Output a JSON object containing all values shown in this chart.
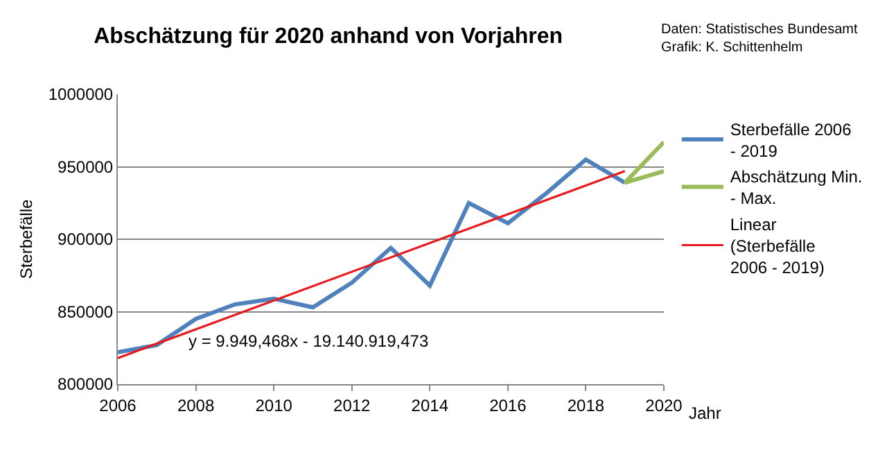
{
  "chart_data": {
    "type": "line",
    "title": "Abschätzung für 2020 anhand von Vorjahren",
    "xlabel": "Jahr",
    "ylabel": "Sterbefälle",
    "annotations": [
      "Daten: Statistisches Bundesamt",
      "Grafik: K. Schittenhelm",
      "y = 9.949,468x - 19.140.919,473"
    ],
    "x": [
      2006,
      2007,
      2008,
      2009,
      2010,
      2011,
      2012,
      2013,
      2014,
      2015,
      2016,
      2017,
      2018,
      2019
    ],
    "series": [
      {
        "name": "Sterbefälle 2006 - 2019",
        "color": "#4f81bd",
        "values": [
          822000,
          827000,
          845000,
          855000,
          859000,
          853000,
          870000,
          894000,
          868000,
          925000,
          911000,
          932000,
          955000,
          939000
        ]
      },
      {
        "name": "Abschätzung Min. - Max.",
        "color": "#9bbb59",
        "x": [
          2020,
          2019,
          2020
        ],
        "values": [
          967000,
          939000,
          947000
        ]
      },
      {
        "name": "Linear (Sterbefälle 2006 - 2019)",
        "color": "#e8191c",
        "x": [
          2006,
          2019
        ],
        "values": [
          818000,
          947000
        ]
      }
    ],
    "xlim": [
      2006,
      2020
    ],
    "xticks": [
      2006,
      2008,
      2010,
      2012,
      2014,
      2016,
      2018,
      2020
    ],
    "ylim": [
      800000,
      1000000
    ],
    "yticks": [
      800000,
      850000,
      900000,
      950000,
      1000000
    ],
    "grid": "y",
    "legend": "right",
    "marker": "none",
    "line_style": "solid"
  }
}
